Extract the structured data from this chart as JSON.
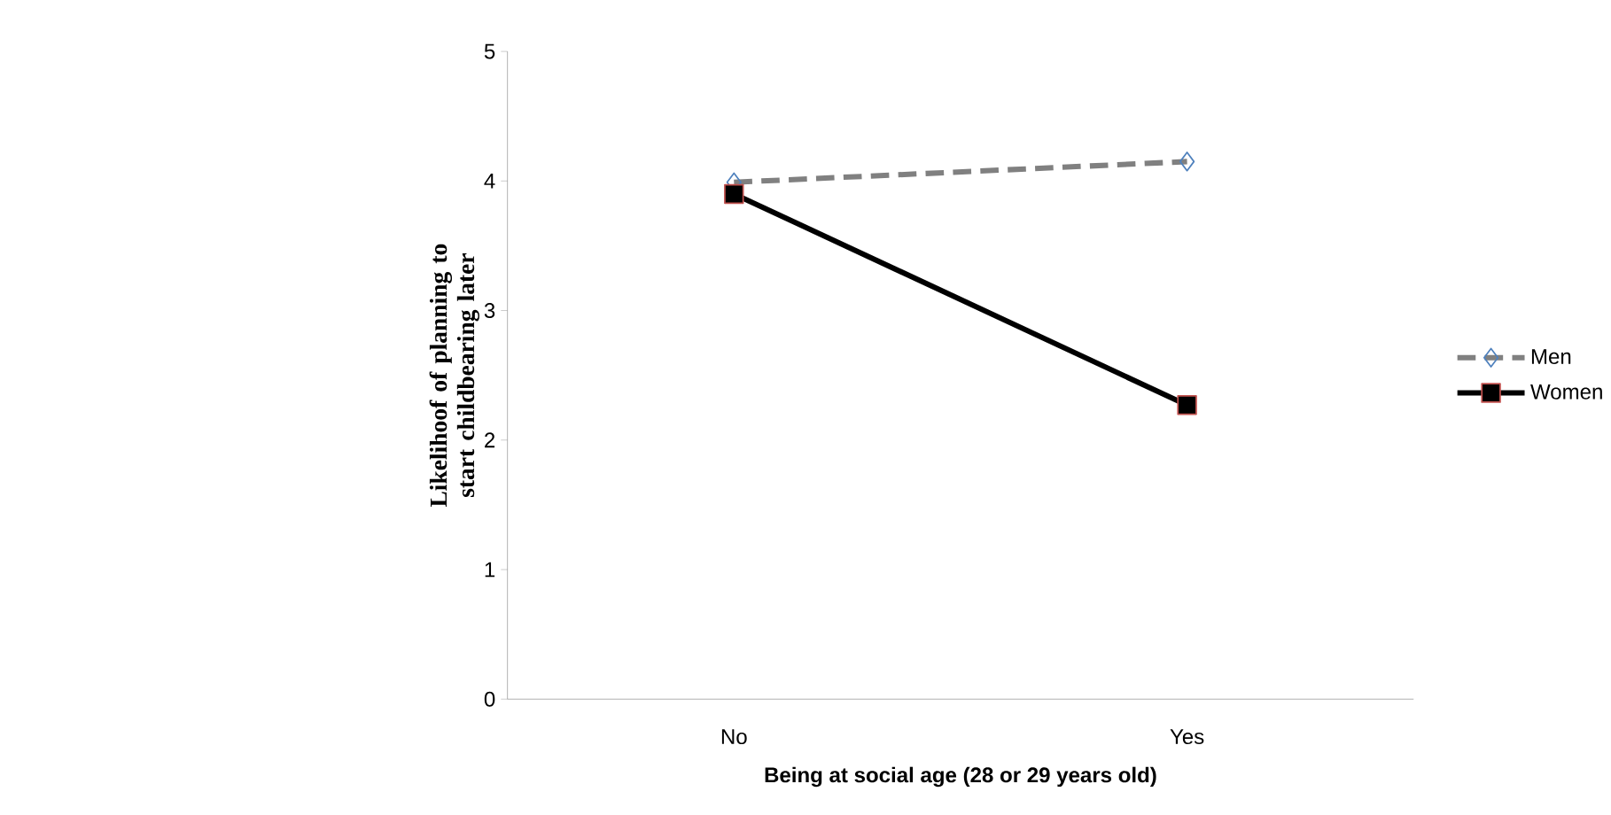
{
  "chart_data": {
    "type": "line",
    "xlabel": "Being at social age (28 or 29 years old)",
    "ylabel": "Likelihoof of planning to start childbearing later",
    "categories": [
      "No",
      "Yes"
    ],
    "series": [
      {
        "name": "Men",
        "color": "#808080",
        "values": [
          3.99,
          4.15
        ],
        "marker": "diamond",
        "line_style": "dashed"
      },
      {
        "name": "Women",
        "color": "#000000",
        "values": [
          3.9,
          2.27
        ],
        "marker": "square",
        "line_style": "solid"
      }
    ],
    "ylim": [
      0,
      5
    ],
    "yticks": [
      0,
      1,
      2,
      3,
      4,
      5
    ],
    "grid": false,
    "legend": "right"
  }
}
